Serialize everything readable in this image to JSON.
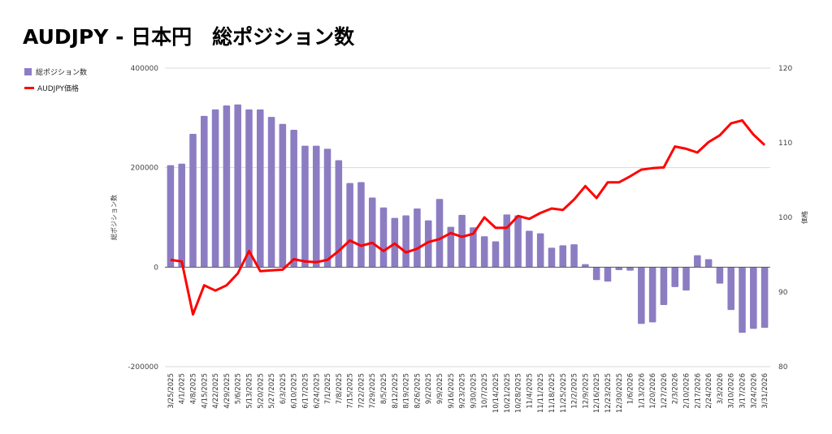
{
  "chart_data": {
    "type": "bar+line",
    "title": "AUDJPY - 日本円　総ポジション数",
    "x": [
      "3/25/2025",
      "4/1/2025",
      "4/8/2025",
      "4/15/2025",
      "4/22/2025",
      "4/29/2025",
      "5/6/2025",
      "5/13/2025",
      "5/20/2025",
      "5/27/2025",
      "6/3/2025",
      "6/10/2025",
      "6/17/2025",
      "6/24/2025",
      "7/1/2025",
      "7/8/2025",
      "7/15/2025",
      "7/22/2025",
      "7/29/2025",
      "8/5/2025",
      "8/12/2025",
      "8/19/2025",
      "8/26/2025",
      "9/2/2025",
      "9/9/2025",
      "9/16/2025",
      "9/23/2025",
      "9/30/2025",
      "10/7/2025",
      "10/14/2025",
      "10/21/2025",
      "10/28/2025",
      "11/4/2025",
      "11/11/2025",
      "11/18/2025",
      "11/25/2025",
      "12/2/2025",
      "12/9/2025",
      "12/16/2025",
      "12/23/2025",
      "12/30/2025",
      "1/6/2026",
      "1/13/2026",
      "1/20/2026",
      "1/27/2026",
      "2/3/2026",
      "2/10/2026",
      "2/17/2026",
      "2/24/2026",
      "3/3/2026",
      "3/10/2026",
      "3/17/2026",
      "3/24/2026",
      "3/31/2026"
    ],
    "series": [
      {
        "name": "総ポジション数",
        "type": "bar",
        "axis": "left",
        "color": "#8c7dc3",
        "values": [
          205000,
          208000,
          268000,
          304000,
          317000,
          325000,
          327000,
          317000,
          317000,
          302000,
          288000,
          276000,
          244000,
          244000,
          238000,
          215000,
          169000,
          171000,
          140000,
          120000,
          99000,
          104000,
          118000,
          94000,
          137000,
          81000,
          105000,
          80000,
          62000,
          52000,
          106000,
          104000,
          73000,
          68000,
          39000,
          44000,
          46000,
          6000,
          -26000,
          -29000,
          -6000,
          -7000,
          -114000,
          -111000,
          -76000,
          -40000,
          -47000,
          24000,
          16000,
          -33000,
          -86000,
          -132000,
          -124000,
          -122000
        ]
      },
      {
        "name": "AUDJPY価格",
        "type": "line",
        "axis": "right",
        "color": "#ff0000",
        "values": [
          94.3,
          94.1,
          87.0,
          90.9,
          90.2,
          90.9,
          92.5,
          95.5,
          92.8,
          92.9,
          93.0,
          94.4,
          94.1,
          94.0,
          94.3,
          95.5,
          96.9,
          96.2,
          96.6,
          95.5,
          96.5,
          95.3,
          95.8,
          96.7,
          97.1,
          97.9,
          97.4,
          97.8,
          100.0,
          98.6,
          98.6,
          100.2,
          99.8,
          100.6,
          101.2,
          101.0,
          102.4,
          104.2,
          102.6,
          104.7,
          104.7,
          105.5,
          106.4,
          106.6,
          106.7,
          109.5,
          109.2,
          108.7,
          110.1,
          111.0,
          112.6,
          113.0,
          111.1,
          109.7
        ]
      }
    ],
    "y_left": {
      "label": "総ポジション数",
      "range": [
        -200000,
        400000
      ],
      "ticks": [
        "400000",
        "200000",
        "0",
        "-200000"
      ],
      "tick_values": [
        400000,
        200000,
        0,
        -200000
      ]
    },
    "y_right": {
      "label": "価格",
      "range": [
        80,
        120
      ],
      "ticks": [
        "120",
        "110",
        "100",
        "90",
        "80"
      ],
      "tick_values": [
        120,
        110,
        100,
        90,
        80
      ]
    },
    "legend": "top-left",
    "grid": true
  }
}
